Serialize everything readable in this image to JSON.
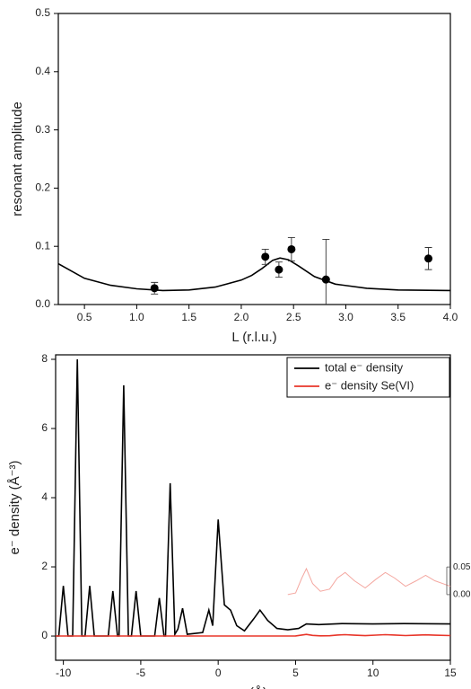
{
  "chart_data": [
    {
      "type": "scatter",
      "x_label": "L (r.l.u.)",
      "y_label": "resonant amplitude",
      "xlim": [
        0.25,
        4.0
      ],
      "ylim": [
        0,
        0.5
      ],
      "xticks": [
        0.5,
        {
          "value": 1,
          "label": "1.0"
        },
        1.5,
        {
          "value": 2,
          "label": "2.0"
        },
        2.5,
        {
          "value": 3,
          "label": "3.0"
        },
        3.5,
        {
          "value": 4,
          "label": "4.0"
        }
      ],
      "yticks": [
        {
          "value": 0,
          "label": "0.0"
        },
        0.1,
        0.2,
        0.3,
        0.4,
        0.5
      ],
      "color": "#000000",
      "x": [
        1.17,
        2.23,
        2.36,
        2.48,
        2.81,
        3.79
      ],
      "values": [
        0.028,
        0.082,
        0.06,
        0.095,
        0.043,
        0.079
      ],
      "errors": [
        0.01,
        0.013,
        0.013,
        0.02,
        0.069,
        0.019
      ],
      "fit_x": [
        0.25,
        0.5,
        0.75,
        1.0,
        1.25,
        1.5,
        1.75,
        2.0,
        2.1,
        2.2,
        2.3,
        2.37,
        2.45,
        2.55,
        2.7,
        2.9,
        3.2,
        3.5,
        4.0
      ],
      "fit_values": [
        0.07,
        0.045,
        0.033,
        0.027,
        0.024,
        0.025,
        0.03,
        0.042,
        0.05,
        0.062,
        0.076,
        0.08,
        0.077,
        0.066,
        0.048,
        0.035,
        0.028,
        0.025,
        0.024
      ]
    },
    {
      "type": "line",
      "x_label": "z (Å)",
      "y_label": "e⁻ density (Å⁻³)",
      "xlim": [
        -10.5,
        15
      ],
      "ylim": [
        -0.7,
        8.13
      ],
      "xticks": [
        -10,
        -5,
        0,
        5,
        10,
        15
      ],
      "yticks": [
        0,
        2,
        4,
        6,
        8
      ],
      "series": [
        {
          "name": "total e⁻ density",
          "color": "#000000",
          "x": [
            -10.5,
            -10.3,
            -10,
            -9.7,
            -9.4,
            -9.1,
            -8.8,
            -8.6,
            -8.3,
            -8.0,
            -7.1,
            -6.8,
            -6.5,
            -6.4,
            -6.1,
            -5.8,
            -5.6,
            -5.3,
            -5.0,
            -4.1,
            -3.8,
            -3.5,
            -3.4,
            -3.1,
            -2.8,
            -2.6,
            -2.3,
            -2.0,
            -1.0,
            -0.6,
            -0.35,
            0,
            0.4,
            0.8,
            1.2,
            1.7,
            2.3,
            2.7,
            3.2,
            3.8,
            4.5,
            5.2,
            5.7,
            6.5,
            8,
            10,
            12,
            15
          ],
          "values": [
            0,
            0,
            1.45,
            0,
            0,
            8.0,
            0,
            0,
            1.45,
            0,
            0,
            1.3,
            0,
            0,
            7.25,
            0,
            0,
            1.3,
            0,
            0,
            1.1,
            0,
            0,
            4.42,
            0.05,
            0.2,
            0.8,
            0.05,
            0.1,
            0.75,
            0.3,
            3.37,
            0.9,
            0.75,
            0.3,
            0.15,
            0.5,
            0.75,
            0.45,
            0.22,
            0.18,
            0.22,
            0.35,
            0.33,
            0.36,
            0.35,
            0.36,
            0.35
          ]
        },
        {
          "name": "e⁻ density Se(VI)",
          "color": "#e8362a",
          "x": [
            -10.5,
            4.5,
            5.0,
            5.4,
            5.7,
            6.1,
            6.6,
            7.2,
            7.7,
            8.2,
            8.8,
            9.5,
            10.2,
            10.8,
            11.4,
            12.1,
            12.8,
            13.4,
            14,
            15
          ],
          "values": [
            0,
            0,
            0.003,
            0.03,
            0.047,
            0.02,
            0.006,
            0.01,
            0.03,
            0.04,
            0.025,
            0.012,
            0.028,
            0.04,
            0.03,
            0.015,
            0.025,
            0.035,
            0.025,
            0.015
          ]
        }
      ],
      "inset": {
        "xlim": [
          4.5,
          15
        ],
        "ylim": [
          -0.005,
          0.06
        ],
        "yticks": [
          0.05,
          {
            "value": 0,
            "label": "0.00"
          }
        ],
        "color": "#f4a7a0"
      }
    }
  ]
}
